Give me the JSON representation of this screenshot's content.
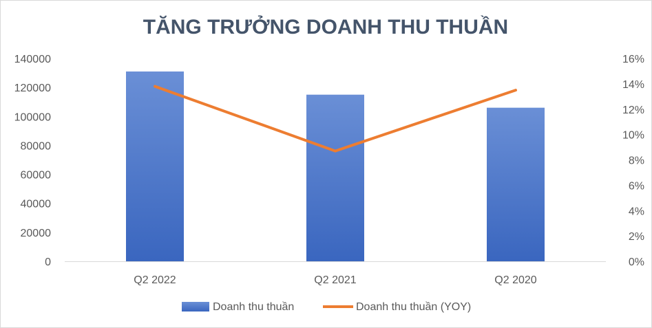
{
  "chart_data": {
    "type": "bar",
    "title": "TĂNG TRƯỞNG DOANH THU THUẦN",
    "categories": [
      "Q2 2022",
      "Q2 2021",
      "Q2 2020"
    ],
    "series": [
      {
        "name": "Doanh thu thuần",
        "type": "bar",
        "axis": "left",
        "color": "#4472c4",
        "values": [
          131000,
          115000,
          106000
        ]
      },
      {
        "name": "Doanh thu thuần (YOY)",
        "type": "line",
        "axis": "right",
        "color": "#ed7d31",
        "values": [
          0.138,
          0.087,
          0.135
        ]
      }
    ],
    "y_left": {
      "ylim": [
        0,
        140000
      ],
      "ticks": [
        "0",
        "20000",
        "40000",
        "60000",
        "80000",
        "100000",
        "120000",
        "140000"
      ]
    },
    "y_right": {
      "ylim": [
        0,
        0.16
      ],
      "ticks": [
        "0%",
        "2%",
        "4%",
        "6%",
        "8%",
        "10%",
        "12%",
        "14%",
        "16%"
      ]
    },
    "grid": false,
    "legend_position": "bottom"
  }
}
